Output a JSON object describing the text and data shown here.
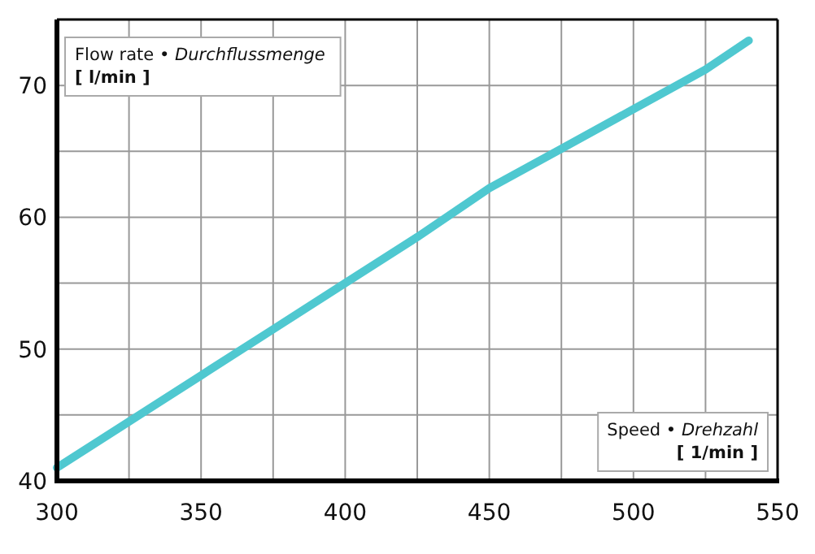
{
  "chart_data": {
    "type": "line",
    "xlabel": "Speed • Drehzahl\n[ 1/min ]",
    "ylabel": "Flow rate • Durchflussmenge\n[ l/min ]",
    "x": [
      300,
      325,
      350,
      375,
      400,
      425,
      450,
      475,
      500,
      525,
      540
    ],
    "series": [
      {
        "color": "#4fc8d0",
        "values": [
          41,
          44.5,
          48,
          51.5,
          55,
          58.5,
          62.2,
          65.2,
          68.2,
          71.2,
          73.4
        ]
      }
    ],
    "xlim": [
      300,
      550
    ],
    "xticks": [
      300,
      {
        "value": 325,
        "label": null
      },
      350,
      {
        "value": 375,
        "label": null
      },
      400,
      {
        "value": 425,
        "label": null
      },
      450,
      {
        "value": 475,
        "label": null
      },
      500,
      {
        "value": 525,
        "label": null
      },
      550
    ],
    "ylim": [
      40,
      75
    ],
    "yticks": [
      40,
      {
        "value": 45,
        "label": null
      },
      50,
      {
        "value": 55,
        "label": null
      },
      60,
      {
        "value": 65,
        "label": null
      },
      70,
      {
        "value": 75,
        "label": null
      }
    ],
    "grid": true,
    "marker": "none",
    "line_style": "solid"
  }
}
